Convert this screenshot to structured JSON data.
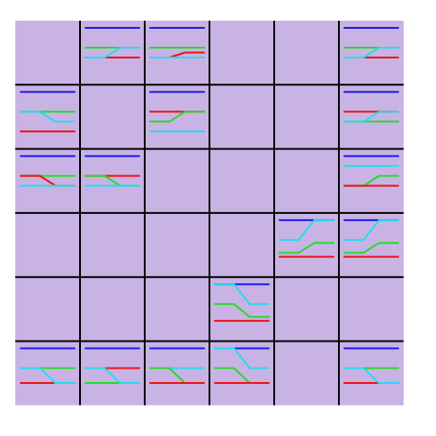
{
  "puzzle": {
    "rows": 6,
    "cols": 6,
    "colors": {
      "background": "#ffffff",
      "cell": "#c9b3e4",
      "grid_line": "#000000",
      "blue": "#1a1aee",
      "green": "#22dd22",
      "red": "#ee1111",
      "cyan": "#22ddee"
    },
    "cells": [
      [
        {
          "wires": []
        },
        {
          "wires": [
            {
              "color": "blue",
              "from": 1,
              "to": 1
            },
            {
              "color": "green",
              "from": 3,
              "to": 3
            },
            {
              "color": "red",
              "from": 4,
              "to": 4
            },
            {
              "color": "cyan",
              "from": 4,
              "to": 3
            }
          ]
        },
        {
          "wires": [
            {
              "color": "blue",
              "from": 1,
              "to": 1
            },
            {
              "color": "green",
              "from": 3,
              "to": 3
            },
            {
              "color": "red",
              "from": 4,
              "to": 3.5
            },
            {
              "color": "cyan",
              "from": 4,
              "to": 4
            }
          ]
        },
        {
          "wires": []
        },
        {
          "wires": []
        },
        {
          "wires": [
            {
              "color": "blue",
              "from": 1,
              "to": 1
            },
            {
              "color": "green",
              "from": 3,
              "to": 3
            },
            {
              "color": "red",
              "from": 4,
              "to": 4
            },
            {
              "color": "cyan",
              "from": 4,
              "to": 3
            }
          ]
        }
      ],
      [
        {
          "wires": [
            {
              "color": "blue",
              "from": 1,
              "to": 1
            },
            {
              "color": "green",
              "from": 3,
              "to": 3
            },
            {
              "color": "red",
              "from": 5,
              "to": 5
            },
            {
              "color": "cyan",
              "from": 3,
              "to": 4
            }
          ]
        },
        {
          "wires": []
        },
        {
          "wires": [
            {
              "color": "blue",
              "from": 1,
              "to": 1
            },
            {
              "color": "red",
              "from": 3,
              "to": 3
            },
            {
              "color": "green",
              "from": 4,
              "to": 3
            },
            {
              "color": "cyan",
              "from": 5,
              "to": 5
            }
          ]
        },
        {
          "wires": []
        },
        {
          "wires": []
        },
        {
          "wires": [
            {
              "color": "blue",
              "from": 1,
              "to": 1
            },
            {
              "color": "red",
              "from": 3,
              "to": 3
            },
            {
              "color": "green",
              "from": 4,
              "to": 4
            },
            {
              "color": "cyan",
              "from": 4,
              "to": 3
            }
          ]
        }
      ],
      [
        {
          "wires": [
            {
              "color": "blue",
              "from": 1,
              "to": 1
            },
            {
              "color": "green",
              "from": 3,
              "to": 3
            },
            {
              "color": "red",
              "from": 3,
              "to": 4
            },
            {
              "color": "cyan",
              "from": 4,
              "to": 4
            }
          ]
        },
        {
          "wires": [
            {
              "color": "blue",
              "from": 1,
              "to": 1
            },
            {
              "color": "red",
              "from": 3,
              "to": 3
            },
            {
              "color": "green",
              "from": 3,
              "to": 4
            },
            {
              "color": "cyan",
              "from": 4,
              "to": 4
            }
          ]
        },
        {
          "wires": []
        },
        {
          "wires": []
        },
        {
          "wires": []
        },
        {
          "wires": [
            {
              "color": "blue",
              "from": 1,
              "to": 1
            },
            {
              "color": "cyan",
              "from": 2,
              "to": 2
            },
            {
              "color": "green",
              "from": 4,
              "to": 3
            },
            {
              "color": "red",
              "from": 4,
              "to": 4
            }
          ]
        }
      ],
      [
        {
          "wires": []
        },
        {
          "wires": []
        },
        {
          "wires": []
        },
        {
          "wires": []
        },
        {
          "wires": [
            {
              "color": "blue",
              "from": 1,
              "to": 1
            },
            {
              "color": "cyan",
              "from": 3,
              "to": 1
            },
            {
              "color": "green",
              "from": 4.3,
              "to": 3.3
            },
            {
              "color": "red",
              "from": 4.7,
              "to": 4.7
            }
          ]
        },
        {
          "wires": [
            {
              "color": "blue",
              "from": 1,
              "to": 1
            },
            {
              "color": "cyan",
              "from": 3,
              "to": 1
            },
            {
              "color": "green",
              "from": 4.3,
              "to": 3.3
            },
            {
              "color": "red",
              "from": 4.7,
              "to": 4.7
            }
          ]
        }
      ],
      [
        {
          "wires": []
        },
        {
          "wires": []
        },
        {
          "wires": []
        },
        {
          "wires": [
            {
              "color": "blue",
              "from": 1,
              "to": 1
            },
            {
              "color": "cyan",
              "from": 1,
              "to": 3
            },
            {
              "color": "green",
              "from": 3,
              "to": 4.3
            },
            {
              "color": "red",
              "from": 4.7,
              "to": 4.7
            }
          ]
        },
        {
          "wires": []
        },
        {
          "wires": []
        }
      ],
      [
        {
          "wires": [
            {
              "color": "blue",
              "from": 1,
              "to": 1
            },
            {
              "color": "green",
              "from": 3,
              "to": 3
            },
            {
              "color": "red",
              "from": 4.5,
              "to": 4.5
            },
            {
              "color": "cyan",
              "from": 3,
              "to": 4.5
            }
          ]
        },
        {
          "wires": [
            {
              "color": "blue",
              "from": 1,
              "to": 1
            },
            {
              "color": "red",
              "from": 3,
              "to": 3
            },
            {
              "color": "green",
              "from": 4.5,
              "to": 4.5
            },
            {
              "color": "cyan",
              "from": 3,
              "to": 4.5
            }
          ]
        },
        {
          "wires": [
            {
              "color": "blue",
              "from": 1,
              "to": 1
            },
            {
              "color": "cyan",
              "from": 3,
              "to": 3
            },
            {
              "color": "green",
              "from": 3,
              "to": 4.5
            },
            {
              "color": "red",
              "from": 4.5,
              "to": 4.5
            }
          ]
        },
        {
          "wires": [
            {
              "color": "blue",
              "from": 1,
              "to": 1
            },
            {
              "color": "cyan",
              "from": 1,
              "to": 3
            },
            {
              "color": "green",
              "from": 3,
              "to": 4.5
            },
            {
              "color": "red",
              "from": 4.5,
              "to": 4.5
            }
          ]
        },
        {
          "wires": []
        },
        {
          "wires": [
            {
              "color": "blue",
              "from": 1,
              "to": 1
            },
            {
              "color": "green",
              "from": 3,
              "to": 3
            },
            {
              "color": "red",
              "from": 4.5,
              "to": 4.5
            },
            {
              "color": "cyan",
              "from": 3,
              "to": 4.5
            }
          ]
        }
      ]
    ]
  }
}
